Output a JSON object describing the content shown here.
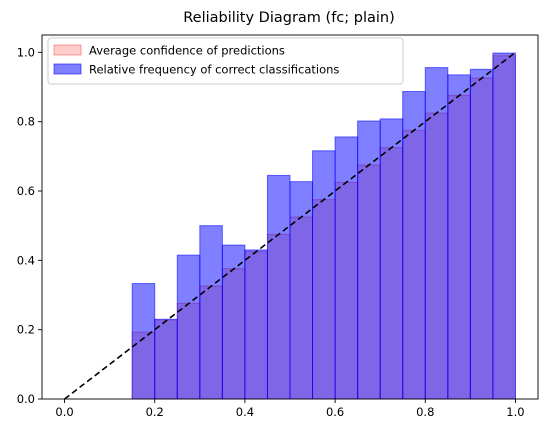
{
  "chart_data": {
    "type": "bar",
    "title": "Reliability Diagram (fc; plain)",
    "xlabel": "",
    "ylabel": "",
    "xlim": [
      -0.05,
      1.05
    ],
    "ylim": [
      0,
      1.05
    ],
    "xticks": [
      "0.0",
      "0.2",
      "0.4",
      "0.6",
      "0.8",
      "1.0"
    ],
    "yticks": [
      "0.0",
      "0.2",
      "0.4",
      "0.6",
      "0.8",
      "1.0"
    ],
    "bin_edges": [
      0.15,
      0.2,
      0.25,
      0.3,
      0.35,
      0.4,
      0.45,
      0.5,
      0.55,
      0.6,
      0.65,
      0.7,
      0.75,
      0.8,
      0.85,
      0.9,
      0.95,
      1.0
    ],
    "grid": false,
    "legend_position": "top-left",
    "series": [
      {
        "name": "Average confidence of predictions",
        "color": "#ff0000",
        "opacity": 0.2,
        "values": [
          0.193,
          0.228,
          0.276,
          0.326,
          0.376,
          0.425,
          0.475,
          0.525,
          0.575,
          0.625,
          0.675,
          0.725,
          0.775,
          0.825,
          0.876,
          0.926,
          0.99
        ]
      },
      {
        "name": "Relative frequency of correct classifications",
        "color": "#0000ff",
        "opacity": 0.5,
        "values": [
          0.333,
          0.23,
          0.415,
          0.5,
          0.444,
          0.43,
          0.645,
          0.627,
          0.716,
          0.756,
          0.802,
          0.808,
          0.887,
          0.956,
          0.935,
          0.951,
          0.998
        ]
      }
    ],
    "reference_line": {
      "style": "dashed",
      "color": "#000000",
      "from": [
        0,
        0
      ],
      "to": [
        1,
        1
      ]
    }
  }
}
